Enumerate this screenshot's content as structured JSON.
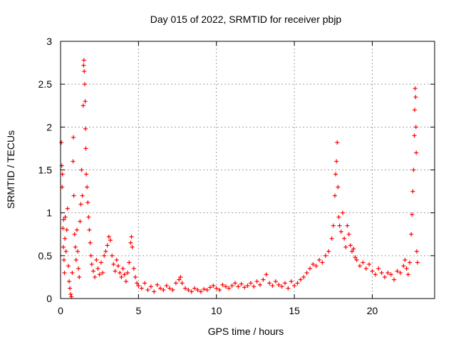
{
  "chart_data": {
    "type": "scatter",
    "title": "Day 015 of 2022, SRMTID for receiver pbjp",
    "xlabel": "GPS time / hours",
    "ylabel": "SRMTID / TECUs",
    "xlim": [
      0,
      24
    ],
    "ylim": [
      0,
      3
    ],
    "xticks": [
      0,
      5,
      10,
      15,
      20
    ],
    "yticks": [
      0,
      0.5,
      1,
      1.5,
      2,
      2.5,
      3
    ],
    "ytick_labels": [
      "0",
      "0.5",
      "1",
      "1.5",
      "2",
      "2.5",
      "3"
    ],
    "grid": true,
    "marker": "+",
    "color": "#ff0000",
    "series": [
      {
        "name": "SRMTID",
        "points": [
          [
            0.05,
            1.82
          ],
          [
            0.08,
            1.55
          ],
          [
            0.1,
            1.3
          ],
          [
            0.12,
            1.45
          ],
          [
            0.15,
            0.82
          ],
          [
            0.18,
            0.6
          ],
          [
            0.2,
            0.92
          ],
          [
            0.22,
            0.45
          ],
          [
            0.25,
            0.3
          ],
          [
            0.28,
            0.7
          ],
          [
            0.3,
            0.95
          ],
          [
            0.35,
            0.55
          ],
          [
            0.4,
            0.8
          ],
          [
            0.45,
            1.05
          ],
          [
            0.5,
            0.38
          ],
          [
            0.55,
            0.2
          ],
          [
            0.6,
            0.12
          ],
          [
            0.65,
            0.05
          ],
          [
            0.7,
            0.02
          ],
          [
            0.75,
            0.3
          ],
          [
            0.8,
            1.6
          ],
          [
            0.82,
            1.88
          ],
          [
            0.85,
            1.2
          ],
          [
            0.9,
            0.75
          ],
          [
            0.95,
            0.6
          ],
          [
            1.0,
            0.45
          ],
          [
            1.05,
            0.8
          ],
          [
            1.1,
            0.55
          ],
          [
            1.15,
            0.35
          ],
          [
            1.2,
            0.25
          ],
          [
            1.25,
            0.9
          ],
          [
            1.3,
            1.1
          ],
          [
            1.35,
            1.5
          ],
          [
            1.4,
            1.2
          ],
          [
            1.45,
            2.25
          ],
          [
            1.48,
            2.72
          ],
          [
            1.5,
            2.78
          ],
          [
            1.52,
            2.65
          ],
          [
            1.55,
            2.5
          ],
          [
            1.58,
            2.3
          ],
          [
            1.6,
            1.98
          ],
          [
            1.62,
            1.75
          ],
          [
            1.65,
            1.45
          ],
          [
            1.7,
            1.3
          ],
          [
            1.75,
            1.12
          ],
          [
            1.8,
            0.95
          ],
          [
            1.85,
            0.8
          ],
          [
            1.9,
            0.65
          ],
          [
            1.95,
            0.5
          ],
          [
            2.0,
            0.4
          ],
          [
            2.1,
            0.32
          ],
          [
            2.2,
            0.25
          ],
          [
            2.3,
            0.45
          ],
          [
            2.4,
            0.35
          ],
          [
            2.5,
            0.28
          ],
          [
            2.6,
            0.42
          ],
          [
            2.7,
            0.3
          ],
          [
            2.8,
            0.5
          ],
          [
            2.9,
            0.55
          ],
          [
            3.0,
            0.62
          ],
          [
            3.1,
            0.72
          ],
          [
            3.2,
            0.68
          ],
          [
            3.3,
            0.5
          ],
          [
            3.4,
            0.4
          ],
          [
            3.5,
            0.32
          ],
          [
            3.6,
            0.45
          ],
          [
            3.7,
            0.38
          ],
          [
            3.8,
            0.3
          ],
          [
            3.9,
            0.25
          ],
          [
            4.0,
            0.35
          ],
          [
            4.1,
            0.28
          ],
          [
            4.2,
            0.2
          ],
          [
            4.3,
            0.3
          ],
          [
            4.4,
            0.42
          ],
          [
            4.5,
            0.65
          ],
          [
            4.55,
            0.72
          ],
          [
            4.6,
            0.6
          ],
          [
            4.7,
            0.35
          ],
          [
            4.8,
            0.25
          ],
          [
            4.9,
            0.18
          ],
          [
            5.0,
            0.15
          ],
          [
            5.2,
            0.12
          ],
          [
            5.4,
            0.18
          ],
          [
            5.6,
            0.1
          ],
          [
            5.8,
            0.14
          ],
          [
            6.0,
            0.08
          ],
          [
            6.2,
            0.16
          ],
          [
            6.4,
            0.12
          ],
          [
            6.6,
            0.1
          ],
          [
            6.8,
            0.15
          ],
          [
            7.0,
            0.12
          ],
          [
            7.2,
            0.1
          ],
          [
            7.4,
            0.18
          ],
          [
            7.6,
            0.22
          ],
          [
            7.7,
            0.25
          ],
          [
            7.8,
            0.18
          ],
          [
            8.0,
            0.12
          ],
          [
            8.2,
            0.1
          ],
          [
            8.4,
            0.08
          ],
          [
            8.6,
            0.12
          ],
          [
            8.8,
            0.1
          ],
          [
            9.0,
            0.08
          ],
          [
            9.2,
            0.11
          ],
          [
            9.4,
            0.1
          ],
          [
            9.6,
            0.13
          ],
          [
            9.8,
            0.15
          ],
          [
            10.0,
            0.12
          ],
          [
            10.2,
            0.1
          ],
          [
            10.4,
            0.16
          ],
          [
            10.6,
            0.14
          ],
          [
            10.8,
            0.12
          ],
          [
            11.0,
            0.15
          ],
          [
            11.2,
            0.18
          ],
          [
            11.4,
            0.14
          ],
          [
            11.6,
            0.17
          ],
          [
            11.8,
            0.13
          ],
          [
            12.0,
            0.15
          ],
          [
            12.2,
            0.18
          ],
          [
            12.4,
            0.14
          ],
          [
            12.6,
            0.2
          ],
          [
            12.8,
            0.16
          ],
          [
            13.0,
            0.22
          ],
          [
            13.2,
            0.28
          ],
          [
            13.4,
            0.18
          ],
          [
            13.6,
            0.15
          ],
          [
            13.8,
            0.2
          ],
          [
            14.0,
            0.16
          ],
          [
            14.2,
            0.14
          ],
          [
            14.4,
            0.18
          ],
          [
            14.6,
            0.12
          ],
          [
            14.8,
            0.2
          ],
          [
            15.0,
            0.15
          ],
          [
            15.2,
            0.18
          ],
          [
            15.4,
            0.22
          ],
          [
            15.6,
            0.25
          ],
          [
            15.8,
            0.3
          ],
          [
            16.0,
            0.35
          ],
          [
            16.2,
            0.4
          ],
          [
            16.4,
            0.38
          ],
          [
            16.6,
            0.45
          ],
          [
            16.8,
            0.42
          ],
          [
            17.0,
            0.5
          ],
          [
            17.2,
            0.55
          ],
          [
            17.4,
            0.7
          ],
          [
            17.5,
            0.85
          ],
          [
            17.6,
            1.2
          ],
          [
            17.65,
            1.45
          ],
          [
            17.7,
            1.6
          ],
          [
            17.75,
            1.82
          ],
          [
            17.8,
            1.3
          ],
          [
            17.85,
            0.95
          ],
          [
            17.9,
            0.85
          ],
          [
            18.0,
            0.78
          ],
          [
            18.1,
            1.0
          ],
          [
            18.2,
            0.7
          ],
          [
            18.3,
            0.6
          ],
          [
            18.4,
            0.85
          ],
          [
            18.5,
            0.75
          ],
          [
            18.6,
            0.62
          ],
          [
            18.7,
            0.55
          ],
          [
            18.8,
            0.58
          ],
          [
            18.9,
            0.48
          ],
          [
            19.0,
            0.45
          ],
          [
            19.2,
            0.38
          ],
          [
            19.4,
            0.42
          ],
          [
            19.6,
            0.35
          ],
          [
            19.8,
            0.4
          ],
          [
            20.0,
            0.32
          ],
          [
            20.2,
            0.28
          ],
          [
            20.4,
            0.35
          ],
          [
            20.6,
            0.3
          ],
          [
            20.8,
            0.25
          ],
          [
            21.0,
            0.3
          ],
          [
            21.2,
            0.28
          ],
          [
            21.4,
            0.22
          ],
          [
            21.6,
            0.32
          ],
          [
            21.8,
            0.3
          ],
          [
            22.0,
            0.38
          ],
          [
            22.1,
            0.45
          ],
          [
            22.2,
            0.35
          ],
          [
            22.3,
            0.28
          ],
          [
            22.4,
            0.42
          ],
          [
            22.5,
            0.75
          ],
          [
            22.55,
            0.98
          ],
          [
            22.6,
            1.25
          ],
          [
            22.65,
            1.5
          ],
          [
            22.7,
            1.9
          ],
          [
            22.72,
            2.2
          ],
          [
            22.75,
            2.45
          ],
          [
            22.78,
            2.35
          ],
          [
            22.8,
            2.0
          ],
          [
            22.82,
            1.7
          ],
          [
            22.85,
            0.55
          ],
          [
            22.9,
            0.42
          ]
        ]
      }
    ]
  }
}
